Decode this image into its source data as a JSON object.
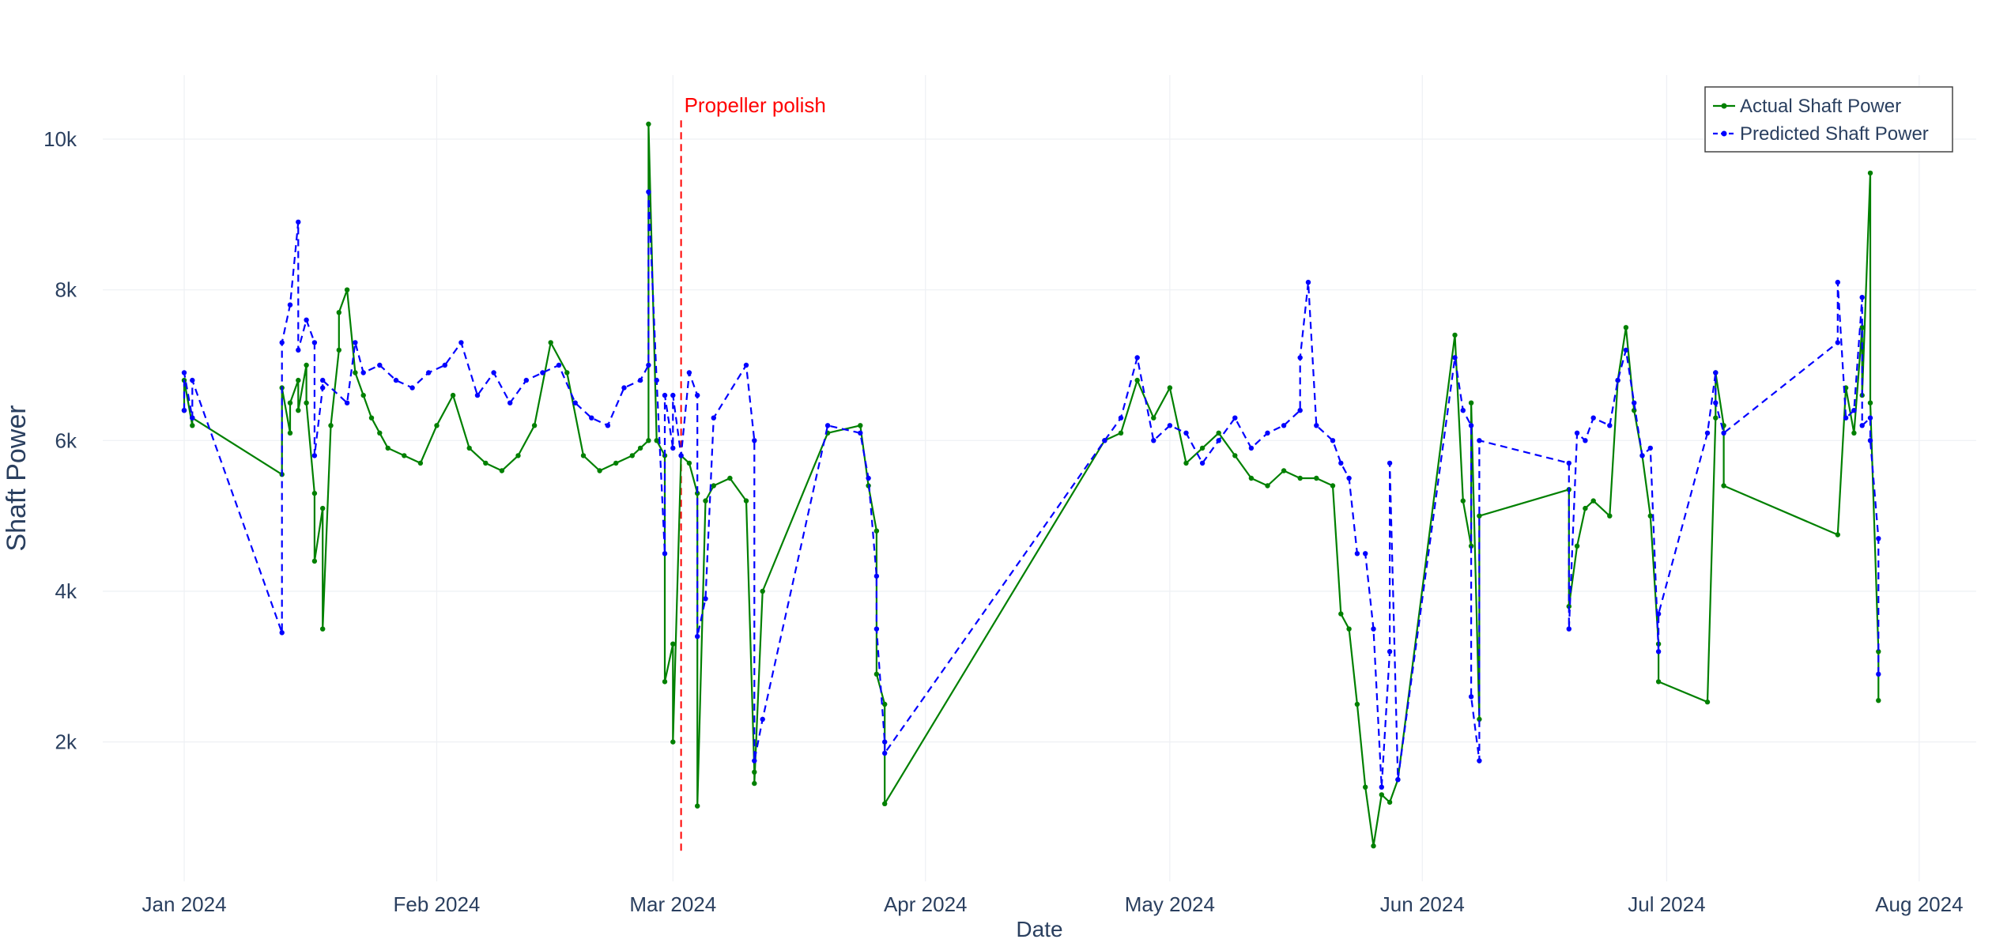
{
  "chart_data": {
    "type": "line",
    "title": "",
    "xlabel": "Date",
    "ylabel": "Shaft Power",
    "x_tick_labels": [
      "Jan 2024",
      "Feb 2024",
      "Mar 2024",
      "Apr 2024",
      "May 2024",
      "Jun 2024",
      "Jul 2024",
      "Aug 2024"
    ],
    "x_tick_dates": [
      "2024-01-01",
      "2024-02-01",
      "2024-03-01",
      "2024-04-01",
      "2024-05-01",
      "2024-06-01",
      "2024-07-01",
      "2024-08-01"
    ],
    "y_tick_labels": [
      "2k",
      "4k",
      "6k",
      "8k",
      "10k"
    ],
    "y_tick_values": [
      2000,
      4000,
      6000,
      8000,
      10000
    ],
    "xlim": [
      "2023-12-22",
      "2024-08-08"
    ],
    "ylim": [
      150,
      10850
    ],
    "grid": true,
    "legend_position": "top-right",
    "annotation": {
      "text": "Propeller polish",
      "date": "2024-03-02",
      "color": "#ff0000",
      "style": "dashed"
    },
    "series": [
      {
        "name": "Actual Shaft Power",
        "color": "#008000",
        "line_style": "solid",
        "x": [
          "2024-01-01",
          "2024-01-01",
          "2024-01-02",
          "2024-01-02",
          "2024-01-13",
          "2024-01-13",
          "2024-01-14",
          "2024-01-14",
          "2024-01-15",
          "2024-01-15",
          "2024-01-16",
          "2024-01-16",
          "2024-01-17",
          "2024-01-17",
          "2024-01-18",
          "2024-01-18",
          "2024-01-19",
          "2024-01-20",
          "2024-01-20",
          "2024-01-21",
          "2024-01-22",
          "2024-01-23",
          "2024-01-24",
          "2024-01-25",
          "2024-01-26",
          "2024-01-28",
          "2024-01-30",
          "2024-02-01",
          "2024-02-03",
          "2024-02-05",
          "2024-02-07",
          "2024-02-09",
          "2024-02-11",
          "2024-02-13",
          "2024-02-15",
          "2024-02-17",
          "2024-02-19",
          "2024-02-21",
          "2024-02-23",
          "2024-02-25",
          "2024-02-26",
          "2024-02-27",
          "2024-02-27",
          "2024-02-28",
          "2024-02-29",
          "2024-02-29",
          "2024-03-01",
          "2024-03-01",
          "2024-03-02",
          "2024-03-03",
          "2024-03-04",
          "2024-03-04",
          "2024-03-05",
          "2024-03-06",
          "2024-03-08",
          "2024-03-10",
          "2024-03-11",
          "2024-03-11",
          "2024-03-12",
          "2024-03-20",
          "2024-03-24",
          "2024-03-25",
          "2024-03-26",
          "2024-03-26",
          "2024-03-27",
          "2024-03-27",
          "2024-04-23",
          "2024-04-25",
          "2024-04-27",
          "2024-04-29",
          "2024-05-01",
          "2024-05-03",
          "2024-05-05",
          "2024-05-07",
          "2024-05-09",
          "2024-05-11",
          "2024-05-13",
          "2024-05-15",
          "2024-05-17",
          "2024-05-19",
          "2024-05-21",
          "2024-05-22",
          "2024-05-23",
          "2024-05-24",
          "2024-05-25",
          "2024-05-26",
          "2024-05-27",
          "2024-05-28",
          "2024-05-29",
          "2024-06-05",
          "2024-06-06",
          "2024-06-07",
          "2024-06-07",
          "2024-06-08",
          "2024-06-08",
          "2024-06-19",
          "2024-06-19",
          "2024-06-20",
          "2024-06-21",
          "2024-06-22",
          "2024-06-24",
          "2024-06-25",
          "2024-06-26",
          "2024-06-27",
          "2024-06-28",
          "2024-06-29",
          "2024-06-30",
          "2024-06-30",
          "2024-07-06",
          "2024-07-07",
          "2024-07-07",
          "2024-07-08",
          "2024-07-08",
          "2024-07-22",
          "2024-07-23",
          "2024-07-24",
          "2024-07-25",
          "2024-07-25",
          "2024-07-26",
          "2024-07-26",
          "2024-07-27",
          "2024-07-27"
        ],
        "y": [
          6400,
          6800,
          6200,
          6300,
          5550,
          6700,
          6100,
          6500,
          6800,
          6400,
          7000,
          6500,
          5300,
          4400,
          5100,
          3500,
          6200,
          7200,
          7700,
          8000,
          6900,
          6600,
          6300,
          6100,
          5900,
          5800,
          5700,
          6200,
          6600,
          5900,
          5700,
          5600,
          5800,
          6200,
          7300,
          6900,
          5800,
          5600,
          5700,
          5800,
          5900,
          6000,
          10200,
          6000,
          5800,
          2800,
          3300,
          2000,
          5800,
          5700,
          5300,
          1150,
          5200,
          5400,
          5500,
          5200,
          1600,
          1450,
          4000,
          6100,
          6200,
          5400,
          4800,
          2900,
          2500,
          1180,
          6000,
          6100,
          6800,
          6300,
          6700,
          5700,
          5900,
          6100,
          5800,
          5500,
          5400,
          5600,
          5500,
          5500,
          5400,
          3700,
          3500,
          2500,
          1400,
          620,
          1300,
          1200,
          1500,
          7400,
          5200,
          4600,
          6500,
          2300,
          5000,
          5350,
          3800,
          4600,
          5100,
          5200,
          5000,
          6800,
          7500,
          6400,
          5800,
          5000,
          3300,
          2800,
          2530,
          6300,
          6900,
          6200,
          5400,
          4750,
          6700,
          6100,
          7500,
          6600,
          9550,
          6500,
          3200,
          2550
        ]
      },
      {
        "name": "Predicted Shaft Power",
        "color": "#0000ff",
        "line_style": "dashed",
        "x": [
          "2024-01-01",
          "2024-01-01",
          "2024-01-02",
          "2024-01-02",
          "2024-01-13",
          "2024-01-13",
          "2024-01-14",
          "2024-01-15",
          "2024-01-15",
          "2024-01-16",
          "2024-01-17",
          "2024-01-17",
          "2024-01-18",
          "2024-01-18",
          "2024-01-21",
          "2024-01-22",
          "2024-01-23",
          "2024-01-25",
          "2024-01-27",
          "2024-01-29",
          "2024-01-31",
          "2024-02-02",
          "2024-02-04",
          "2024-02-06",
          "2024-02-08",
          "2024-02-10",
          "2024-02-12",
          "2024-02-14",
          "2024-02-16",
          "2024-02-18",
          "2024-02-20",
          "2024-02-22",
          "2024-02-24",
          "2024-02-26",
          "2024-02-27",
          "2024-02-27",
          "2024-02-28",
          "2024-02-29",
          "2024-02-29",
          "2024-03-01",
          "2024-03-01",
          "2024-03-02",
          "2024-03-03",
          "2024-03-04",
          "2024-03-04",
          "2024-03-05",
          "2024-03-06",
          "2024-03-10",
          "2024-03-11",
          "2024-03-11",
          "2024-03-12",
          "2024-03-20",
          "2024-03-24",
          "2024-03-25",
          "2024-03-26",
          "2024-03-26",
          "2024-03-27",
          "2024-03-27",
          "2024-04-23",
          "2024-04-25",
          "2024-04-27",
          "2024-04-29",
          "2024-05-01",
          "2024-05-03",
          "2024-05-05",
          "2024-05-07",
          "2024-05-09",
          "2024-05-11",
          "2024-05-13",
          "2024-05-15",
          "2024-05-17",
          "2024-05-17",
          "2024-05-18",
          "2024-05-19",
          "2024-05-21",
          "2024-05-22",
          "2024-05-23",
          "2024-05-24",
          "2024-05-25",
          "2024-05-26",
          "2024-05-27",
          "2024-05-28",
          "2024-05-28",
          "2024-05-29",
          "2024-06-05",
          "2024-06-06",
          "2024-06-07",
          "2024-06-07",
          "2024-06-08",
          "2024-06-08",
          "2024-06-19",
          "2024-06-19",
          "2024-06-20",
          "2024-06-21",
          "2024-06-22",
          "2024-06-24",
          "2024-06-25",
          "2024-06-26",
          "2024-06-27",
          "2024-06-28",
          "2024-06-29",
          "2024-06-30",
          "2024-06-30",
          "2024-07-06",
          "2024-07-07",
          "2024-07-07",
          "2024-07-08",
          "2024-07-22",
          "2024-07-22",
          "2024-07-23",
          "2024-07-24",
          "2024-07-25",
          "2024-07-25",
          "2024-07-26",
          "2024-07-26",
          "2024-07-27",
          "2024-07-27"
        ],
        "y": [
          6400,
          6900,
          6300,
          6800,
          3450,
          7300,
          7800,
          8900,
          7200,
          7600,
          7300,
          5800,
          6700,
          6800,
          6500,
          7300,
          6900,
          7000,
          6800,
          6700,
          6900,
          7000,
          7300,
          6600,
          6900,
          6500,
          6800,
          6900,
          7000,
          6500,
          6300,
          6200,
          6700,
          6800,
          7000,
          9300,
          6800,
          4500,
          6600,
          5900,
          6600,
          5800,
          6900,
          6600,
          3400,
          3900,
          6300,
          7000,
          6000,
          1750,
          2300,
          6200,
          6100,
          5500,
          4200,
          3500,
          2000,
          1850,
          6000,
          6300,
          7100,
          6000,
          6200,
          6100,
          5700,
          6000,
          6300,
          5900,
          6100,
          6200,
          6400,
          7100,
          8100,
          6200,
          6000,
          5700,
          5500,
          4500,
          4500,
          3500,
          1400,
          3200,
          5700,
          1500,
          7100,
          6400,
          6200,
          2600,
          1750,
          6000,
          5700,
          3500,
          6100,
          6000,
          6300,
          6200,
          6800,
          7200,
          6500,
          5800,
          5900,
          3200,
          3700,
          6100,
          6900,
          6500,
          6100,
          7300,
          8100,
          6300,
          6400,
          7900,
          6200,
          6300,
          6000,
          4700,
          2900
        ]
      }
    ]
  }
}
